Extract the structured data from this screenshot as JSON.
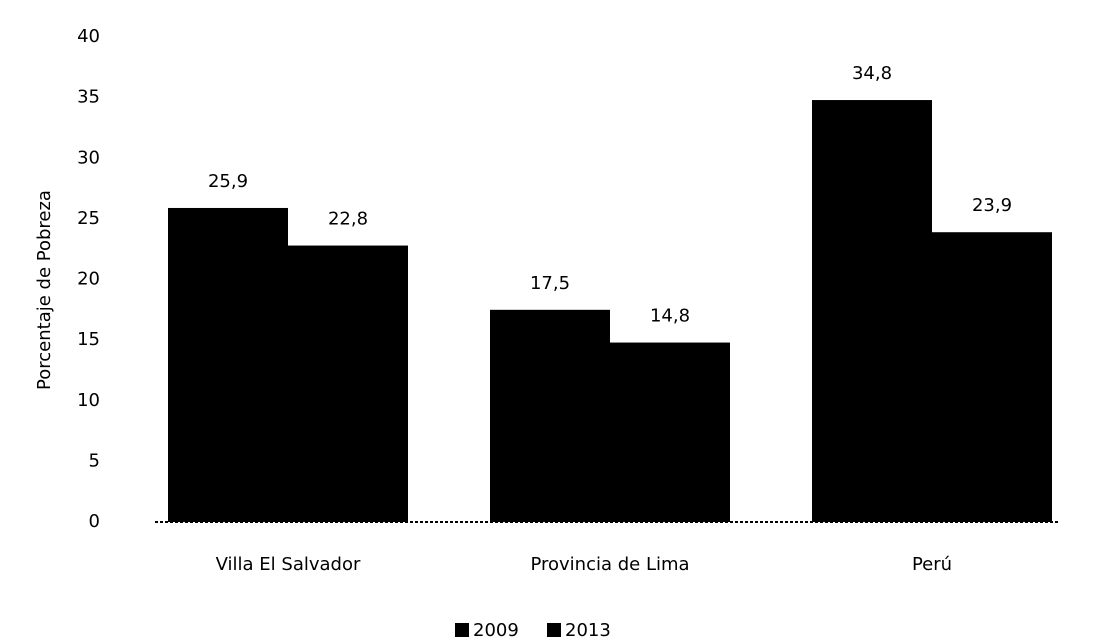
{
  "chart_data": {
    "type": "bar",
    "y_axis_label": "Porcentaje de Pobreza",
    "categories": [
      "Villa El Salvador",
      "Provincia de Lima",
      "Perú"
    ],
    "series": [
      {
        "name": "2009",
        "color": "#000000",
        "values": [
          25.9,
          17.5,
          34.8
        ],
        "value_labels": [
          "25,9",
          "17,5",
          "34,8"
        ]
      },
      {
        "name": "2013",
        "color": "#000000",
        "values": [
          22.8,
          14.8,
          23.9
        ],
        "value_labels": [
          "22,8",
          "14,8",
          "23,9"
        ]
      }
    ],
    "ylim": [
      0,
      40
    ],
    "yticks": [
      0,
      5,
      10,
      15,
      20,
      25,
      30,
      35,
      40
    ],
    "grid": false,
    "legend": "bottom"
  }
}
